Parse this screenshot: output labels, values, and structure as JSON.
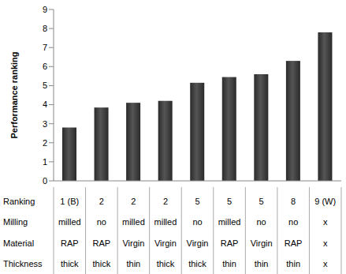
{
  "chart_data": {
    "type": "bar",
    "y_label": "Performance ranking",
    "category_header": "Ranking",
    "categories": [
      "1 (B)",
      "2",
      "2",
      "2",
      "5",
      "5",
      "5",
      "8",
      "9 (W)"
    ],
    "values": [
      2.8,
      3.85,
      4.1,
      4.2,
      5.15,
      5.45,
      5.6,
      6.3,
      7.8
    ],
    "color": "#555555",
    "ylim": [
      0,
      9
    ],
    "yticks": [
      0,
      1,
      2,
      3,
      4,
      5,
      6,
      7,
      8,
      9
    ],
    "grid": false,
    "table_rows": [
      {
        "label": "Milling",
        "cells": [
          "milled",
          "no",
          "milled",
          "milled",
          "no",
          "milled",
          "no",
          "no",
          "x"
        ]
      },
      {
        "label": "Material",
        "cells": [
          "RAP",
          "RAP",
          "Virgin",
          "Virgin",
          "Virgin",
          "RAP",
          "Virgin",
          "RAP",
          "x"
        ]
      },
      {
        "label": "Thickness",
        "cells": [
          "thick",
          "thick",
          "thin",
          "thick",
          "thick",
          "thin",
          "thin",
          "thin",
          "x"
        ]
      }
    ]
  }
}
